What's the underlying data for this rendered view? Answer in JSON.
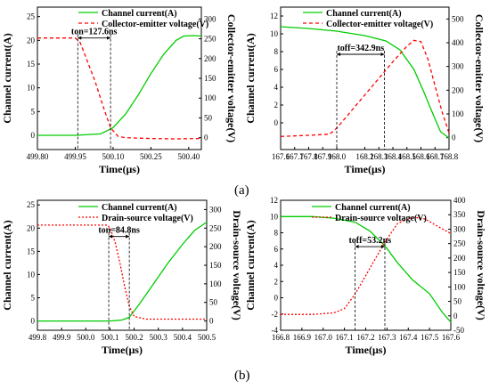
{
  "captions": {
    "a": "(a)",
    "b": "(b)"
  },
  "chart_data": [
    {
      "type": "line",
      "ylabel": "Channel current(A)",
      "y2label": "Collector-emitter voltage(V)",
      "xlabel": "Time(μs)",
      "xlim": [
        499.8,
        500.45
      ],
      "xticks": [
        "499.80",
        "499.95",
        "500.10",
        "500.25",
        "500.40"
      ],
      "xtick_values": [
        499.8,
        499.95,
        500.1,
        500.25,
        500.4
      ],
      "ylim": [
        -3,
        27
      ],
      "yticks": [
        0,
        5,
        10,
        15,
        20,
        25
      ],
      "y2lim": [
        -30,
        330
      ],
      "y2ticks": [
        0,
        50,
        100,
        150,
        200,
        250,
        300
      ],
      "legend": [
        "Channel current(A)",
        "Collector-emitter voltage(V)"
      ],
      "legend_position": "top-center",
      "annotation": {
        "text": "ton=127.6ns",
        "x_start": 499.96,
        "x_end": 500.09,
        "y_level": 20.5
      },
      "series": [
        {
          "name": "Channel current(A)",
          "color": "#00cc00",
          "style": "solid",
          "axis": "left",
          "x": [
            499.8,
            499.95,
            500.05,
            500.1,
            500.15,
            500.2,
            500.25,
            500.3,
            500.35,
            500.38,
            500.42,
            500.45
          ],
          "y": [
            0,
            0,
            0.3,
            1.6,
            4.5,
            8.5,
            13,
            17,
            20,
            20.9,
            21,
            20.9
          ]
        },
        {
          "name": "Collector-emitter voltage(V)",
          "color": "#ff0000",
          "style": "dashed",
          "axis": "right",
          "x": [
            499.8,
            499.95,
            499.97,
            500.0,
            500.03,
            500.06,
            500.09,
            500.12,
            500.15,
            500.25,
            500.35,
            500.45
          ],
          "y": [
            252,
            252,
            240,
            190,
            140,
            80,
            25,
            3,
            0,
            -2,
            -3,
            -2
          ]
        }
      ]
    },
    {
      "type": "line",
      "ylabel": "Channel current(A)",
      "y2label": "Collector-emitter voltage(V)",
      "xlabel": "Time(μs)",
      "xlim": [
        167.6,
        168.8
      ],
      "xticks": [
        "167.6",
        "167.7",
        "167.8",
        "167.9",
        "168.0",
        "168.2",
        "168.3",
        "168.4",
        "168.5",
        "168.6",
        "168.7",
        "168.8"
      ],
      "xtick_values": [
        167.6,
        167.7,
        167.8,
        167.9,
        168.0,
        168.2,
        168.3,
        168.4,
        168.5,
        168.6,
        168.7,
        168.8
      ],
      "ylim": [
        -3,
        13
      ],
      "yticks": [
        0,
        2,
        4,
        6,
        8,
        10,
        12
      ],
      "y2lim": [
        -50,
        550
      ],
      "y2ticks": [
        0,
        100,
        200,
        300,
        400,
        500
      ],
      "legend": [
        "Channel current(A)",
        "Collector-emitter voltage(V)"
      ],
      "legend_position": "top-right",
      "annotation": {
        "text": "toff=342.9ns",
        "x_start": 168.0,
        "x_end": 168.34,
        "y_level": 7.7
      },
      "series": [
        {
          "name": "Channel current(A)",
          "color": "#00cc00",
          "style": "solid",
          "axis": "left",
          "x": [
            167.6,
            167.8,
            168.0,
            168.2,
            168.35,
            168.45,
            168.55,
            168.62,
            168.68,
            168.74,
            168.8
          ],
          "y": [
            10.8,
            10.6,
            10.3,
            9.8,
            9.2,
            8.2,
            6.0,
            3.5,
            1.2,
            -1.0,
            -1.7
          ]
        },
        {
          "name": "Collector-emitter voltage(V)",
          "color": "#ff0000",
          "style": "dashed",
          "axis": "right",
          "x": [
            167.6,
            167.8,
            167.95,
            168.0,
            168.1,
            168.2,
            168.3,
            168.4,
            168.5,
            168.55,
            168.6,
            168.65,
            168.7,
            168.75,
            168.8
          ],
          "y": [
            5,
            10,
            15,
            40,
            110,
            180,
            250,
            320,
            385,
            410,
            405,
            330,
            220,
            110,
            20
          ]
        }
      ]
    },
    {
      "type": "line",
      "ylabel": "Channel current(A)",
      "y2label": "Drain-source voltage(V)",
      "xlabel": "Time(μs)",
      "xlim": [
        499.8,
        500.5
      ],
      "xticks": [
        "499.8",
        "499.9",
        "500.0",
        "500.1",
        "500.2",
        "500.3",
        "500.4",
        "500.5"
      ],
      "xtick_values": [
        499.8,
        499.9,
        500.0,
        500.1,
        500.2,
        500.3,
        500.4,
        500.5
      ],
      "ylim": [
        -2,
        26
      ],
      "yticks": [
        0,
        5,
        10,
        15,
        20,
        25
      ],
      "y2lim": [
        -25,
        325
      ],
      "y2ticks": [
        0,
        50,
        100,
        150,
        200,
        250,
        300
      ],
      "legend": [
        "Channel current(A)",
        "Drain-source voltage(V)"
      ],
      "legend_position": "top-center",
      "annotation": {
        "text": "ton=84.8ns",
        "x_start": 500.095,
        "x_end": 500.18,
        "y_level": 18.2
      },
      "series": [
        {
          "name": "Channel current(A)",
          "color": "#00cc00",
          "style": "solid",
          "axis": "left",
          "x": [
            499.8,
            500.1,
            500.15,
            500.18,
            500.22,
            500.28,
            500.34,
            500.4,
            500.45,
            500.5
          ],
          "y": [
            0,
            0,
            0.2,
            0.8,
            3.5,
            8,
            12.5,
            16.5,
            19.5,
            21.3
          ]
        },
        {
          "name": "Drain-source voltage(V)",
          "color": "#ff0000",
          "style": "dotted",
          "axis": "right",
          "x": [
            499.8,
            500.09,
            500.1,
            500.12,
            500.14,
            500.16,
            500.18,
            500.2,
            500.25,
            500.35,
            500.5
          ],
          "y": [
            258,
            258,
            250,
            215,
            160,
            95,
            40,
            12,
            5,
            5,
            5
          ]
        }
      ]
    },
    {
      "type": "line",
      "ylabel": "Channel current(A)",
      "y2label": "Drain-source voltage(V)",
      "xlabel": "Time(μs)",
      "xlim": [
        166.8,
        167.6
      ],
      "xticks": [
        "166.8",
        "166.9",
        "167.0",
        "167.1",
        "167.2",
        "167.3",
        "167.4",
        "167.5",
        "167.6"
      ],
      "xtick_values": [
        166.8,
        166.9,
        167.0,
        167.1,
        167.2,
        167.3,
        167.4,
        167.5,
        167.6
      ],
      "ylim": [
        -4,
        12
      ],
      "yticks": [
        -4,
        -2,
        0,
        2,
        4,
        6,
        8,
        10,
        12
      ],
      "y2lim": [
        -50,
        400
      ],
      "y2ticks": [
        -50,
        0,
        50,
        100,
        150,
        200,
        250,
        300,
        350,
        400
      ],
      "legend": [
        "Channel current(A)",
        "Drain-source voltage(V)"
      ],
      "legend_position": "top-right",
      "annotation": {
        "text": "toff=53.2ns",
        "x_start": 167.15,
        "x_end": 167.29,
        "y_level": 6.3
      },
      "series": [
        {
          "name": "Channel current(A)",
          "color": "#00cc00",
          "style": "solid",
          "axis": "left",
          "x": [
            166.8,
            166.95,
            167.05,
            167.15,
            167.22,
            167.29,
            167.35,
            167.42,
            167.5,
            167.56,
            167.6
          ],
          "y": [
            10,
            10,
            9.8,
            9.3,
            8.2,
            6.4,
            4.3,
            2.2,
            0.5,
            -1.8,
            -3
          ]
        },
        {
          "name": "Drain-source voltage(V)",
          "color": "#ff0000",
          "style": "dotted",
          "axis": "right",
          "x": [
            166.8,
            166.95,
            167.05,
            167.1,
            167.15,
            167.22,
            167.29,
            167.35,
            167.42,
            167.48,
            167.55,
            167.6
          ],
          "y": [
            5,
            5,
            10,
            25,
            75,
            165,
            255,
            320,
            342,
            335,
            305,
            285
          ]
        }
      ]
    }
  ]
}
